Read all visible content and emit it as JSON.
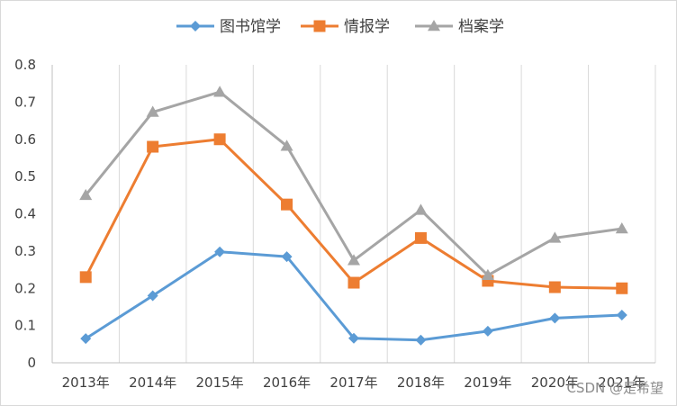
{
  "chart_data": {
    "type": "line",
    "title": "",
    "xlabel": "",
    "ylabel": "",
    "categories": [
      "2013年",
      "2014年",
      "2015年",
      "2016年",
      "2017年",
      "2018年",
      "2019年",
      "2020年",
      "2021年"
    ],
    "ylim": [
      0,
      0.8
    ],
    "yticks": [
      "0",
      "0.1",
      "0.2",
      "0.3",
      "0.4",
      "0.5",
      "0.6",
      "0.7",
      "0.8"
    ],
    "grid": "vertical",
    "legend_position": "top",
    "series": [
      {
        "name": "图书馆学",
        "color": "#5b9bd5",
        "marker": "diamond",
        "values": [
          0.065,
          0.18,
          0.298,
          0.285,
          0.066,
          0.061,
          0.085,
          0.12,
          0.128
        ]
      },
      {
        "name": "情报学",
        "color": "#ed7d31",
        "marker": "square",
        "values": [
          0.23,
          0.58,
          0.6,
          0.425,
          0.215,
          0.335,
          0.22,
          0.203,
          0.2
        ]
      },
      {
        "name": "档案学",
        "color": "#a5a5a5",
        "marker": "triangle",
        "values": [
          0.45,
          0.673,
          0.727,
          0.582,
          0.275,
          0.41,
          0.235,
          0.335,
          0.36
        ]
      }
    ]
  },
  "watermark": "CSDN @是希望"
}
